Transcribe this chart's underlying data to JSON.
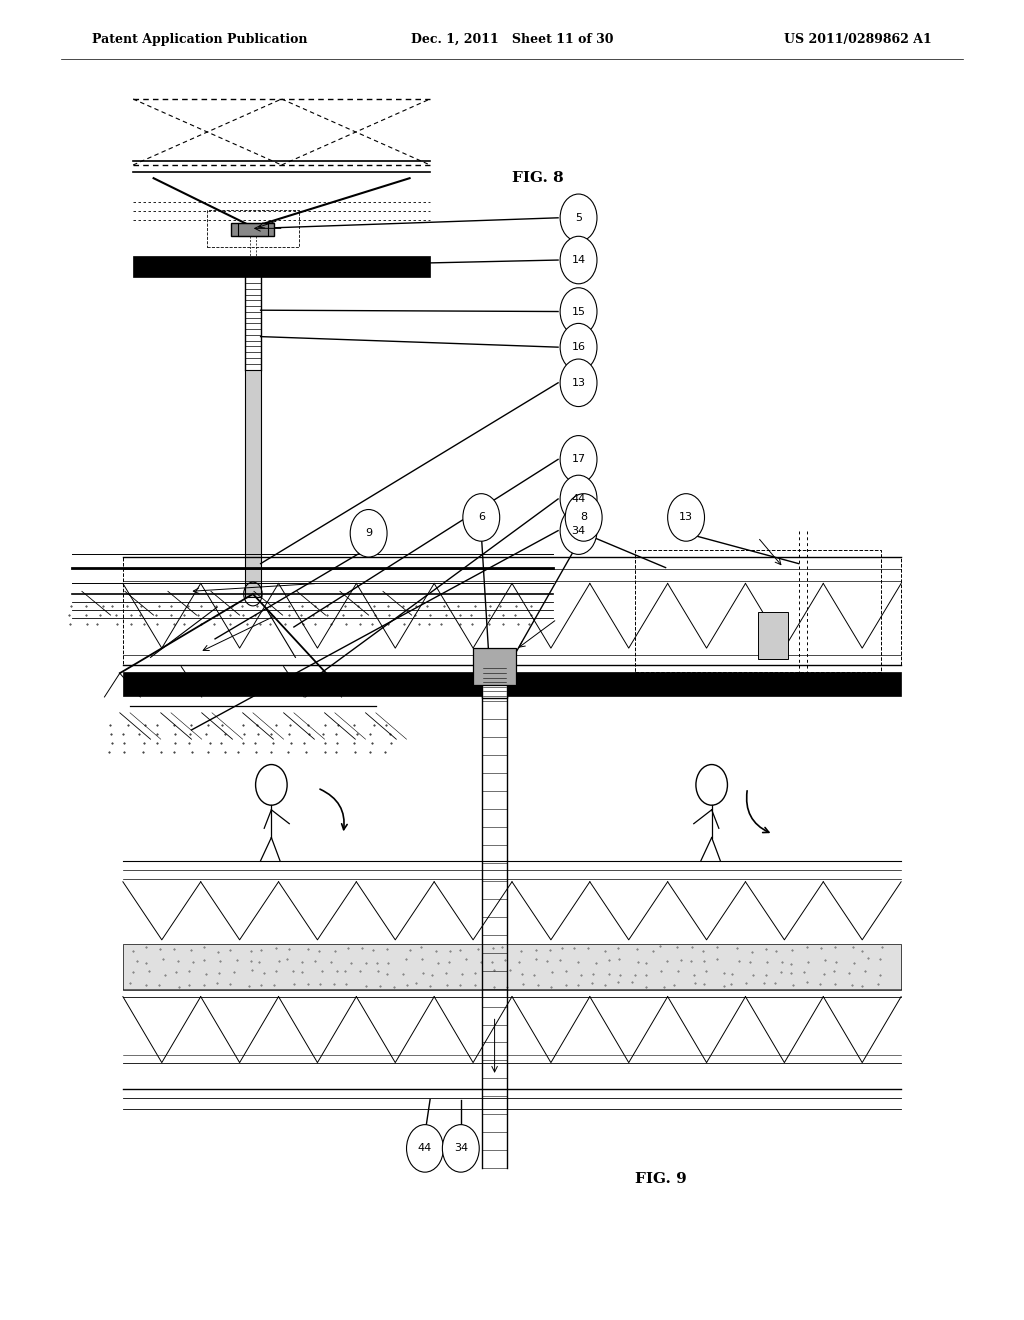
{
  "page_header": {
    "left": "Patent Application Publication",
    "center": "Dec. 1, 2011   Sheet 11 of 30",
    "right": "US 2011/0289862 A1"
  },
  "fig8_label": "FIG. 8",
  "fig9_label": "FIG. 9",
  "background_color": "#ffffff",
  "line_color": "#000000"
}
